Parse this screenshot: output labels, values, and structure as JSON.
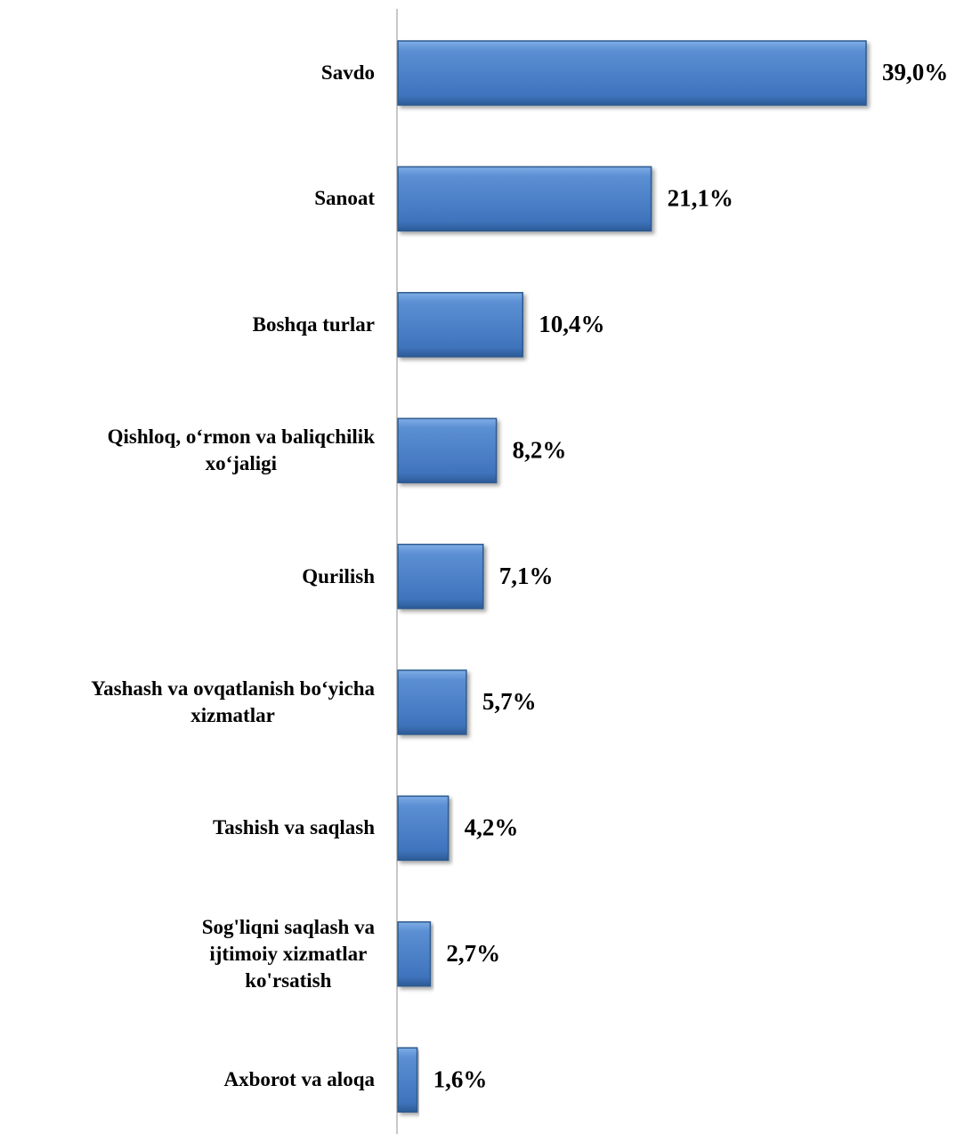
{
  "chart_data": {
    "type": "bar",
    "orientation": "horizontal",
    "color": "#4f81bd",
    "categories": [
      "Savdo",
      "Sanoat",
      "Boshqa turlar",
      "Qishloq, o‘rmon va baliqchilik\nxo‘jaligi",
      "Qurilish",
      "Yashash va ovqatlanish bo‘yicha\nxizmatlar",
      "Tashish va saqlash",
      "Sog'liqni saqlash va\nijtimoiy xizmatlar\nko'rsatish",
      "Axborot va aloqa"
    ],
    "values": [
      39.0,
      21.1,
      10.4,
      8.2,
      7.1,
      5.7,
      4.2,
      2.7,
      1.6
    ],
    "value_labels": [
      "39,0%",
      "21,1%",
      "10,4%",
      "8,2%",
      "7,1%",
      "5,7%",
      "4,2%",
      "2,7%",
      "1,6%"
    ]
  }
}
